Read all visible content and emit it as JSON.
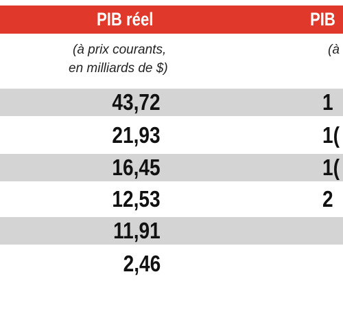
{
  "header": {
    "col1_title": "PIB réel",
    "col2_title": "PIB"
  },
  "subheader": {
    "col1_line1": "(à prix courants,",
    "col1_line2": "en milliards de $)",
    "col2_line1": "(à"
  },
  "rows": [
    {
      "col1": "43,72",
      "col2": "1",
      "shaded": true
    },
    {
      "col1": "21,93",
      "col2": "1(",
      "shaded": false
    },
    {
      "col1": "16,45",
      "col2": "1(",
      "shaded": true
    },
    {
      "col1": "12,53",
      "col2": "2",
      "shaded": false
    },
    {
      "col1": "11,91",
      "col2": "",
      "shaded": true
    },
    {
      "col1": "2,46",
      "col2": "",
      "shaded": false
    }
  ],
  "colors": {
    "header_bg": "#e0392b",
    "row_shade": "#d4d4d4"
  }
}
